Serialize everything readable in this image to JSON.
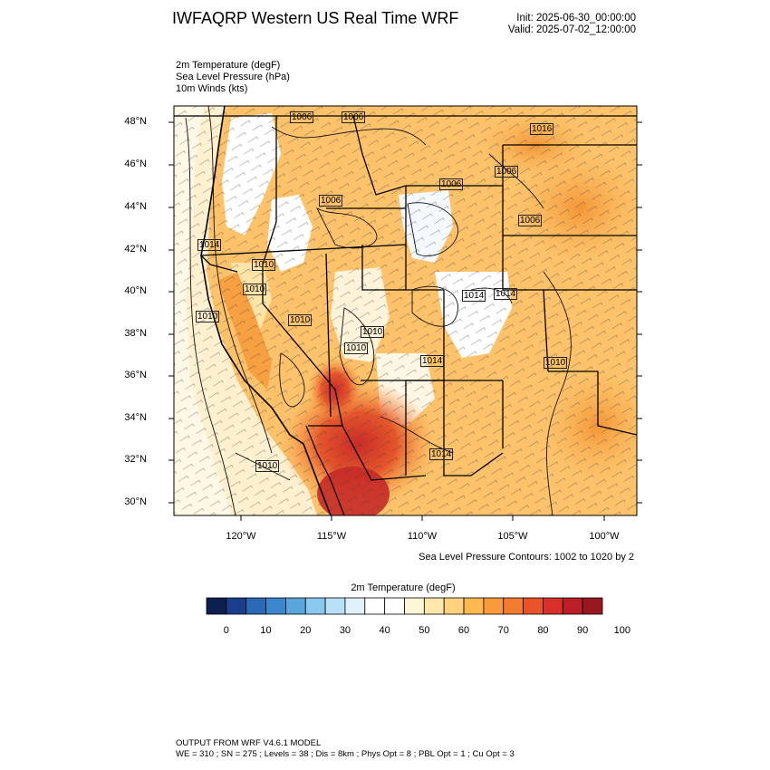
{
  "header": {
    "title": "IWFAQRP Western US Real Time WRF",
    "init": "Init: 2025-06-30_00:00:00",
    "valid": "Valid: 2025-07-02_12:00:00"
  },
  "fields": [
    "2m Temperature   (degF)",
    "Sea Level Pressure   (hPa)",
    "10m Winds   (kts)"
  ],
  "map": {
    "lat_labels": [
      "48°N",
      "46°N",
      "44°N",
      "42°N",
      "40°N",
      "38°N",
      "36°N",
      "34°N",
      "32°N",
      "30°N"
    ],
    "lon_labels": [
      "120°W",
      "115°W",
      "110°W",
      "105°W",
      "100°W"
    ],
    "pressure_labels": [
      "1006",
      "1006",
      "1016",
      "1006",
      "1006",
      "1006",
      "1006",
      "1014",
      "1010",
      "1010",
      "1010",
      "1010",
      "1010",
      "1014",
      "1014",
      "1010",
      "1014",
      "1014",
      "1010",
      "1010"
    ],
    "contour_note": "Sea Level Pressure Contours: 1002 to 1020 by 2"
  },
  "colorbar": {
    "title": "2m Temperature  (degF)",
    "labels": [
      "0",
      "10",
      "20",
      "30",
      "40",
      "50",
      "60",
      "70",
      "80",
      "90",
      "100"
    ],
    "colors": [
      "#0d1f4f",
      "#1a3e8c",
      "#2a68b8",
      "#3b86cc",
      "#5aa5dc",
      "#8ac8ef",
      "#b8e1f6",
      "#e0f1fa",
      "#ffffff",
      "#ffffff",
      "#fff5d7",
      "#ffe7ac",
      "#ffd27f",
      "#fdb850",
      "#f99b3a",
      "#f47c2f",
      "#e95327",
      "#d8302a",
      "#bb1e26",
      "#981820"
    ]
  },
  "footer": {
    "line1": "OUTPUT FROM WRF V4.6.1 MODEL",
    "line2": "WE = 310 ; SN = 275 ; Levels = 38 ; Dis = 8km ; Phys Opt = 8 ; PBL Opt = 1 ; Cu Opt = 3"
  }
}
